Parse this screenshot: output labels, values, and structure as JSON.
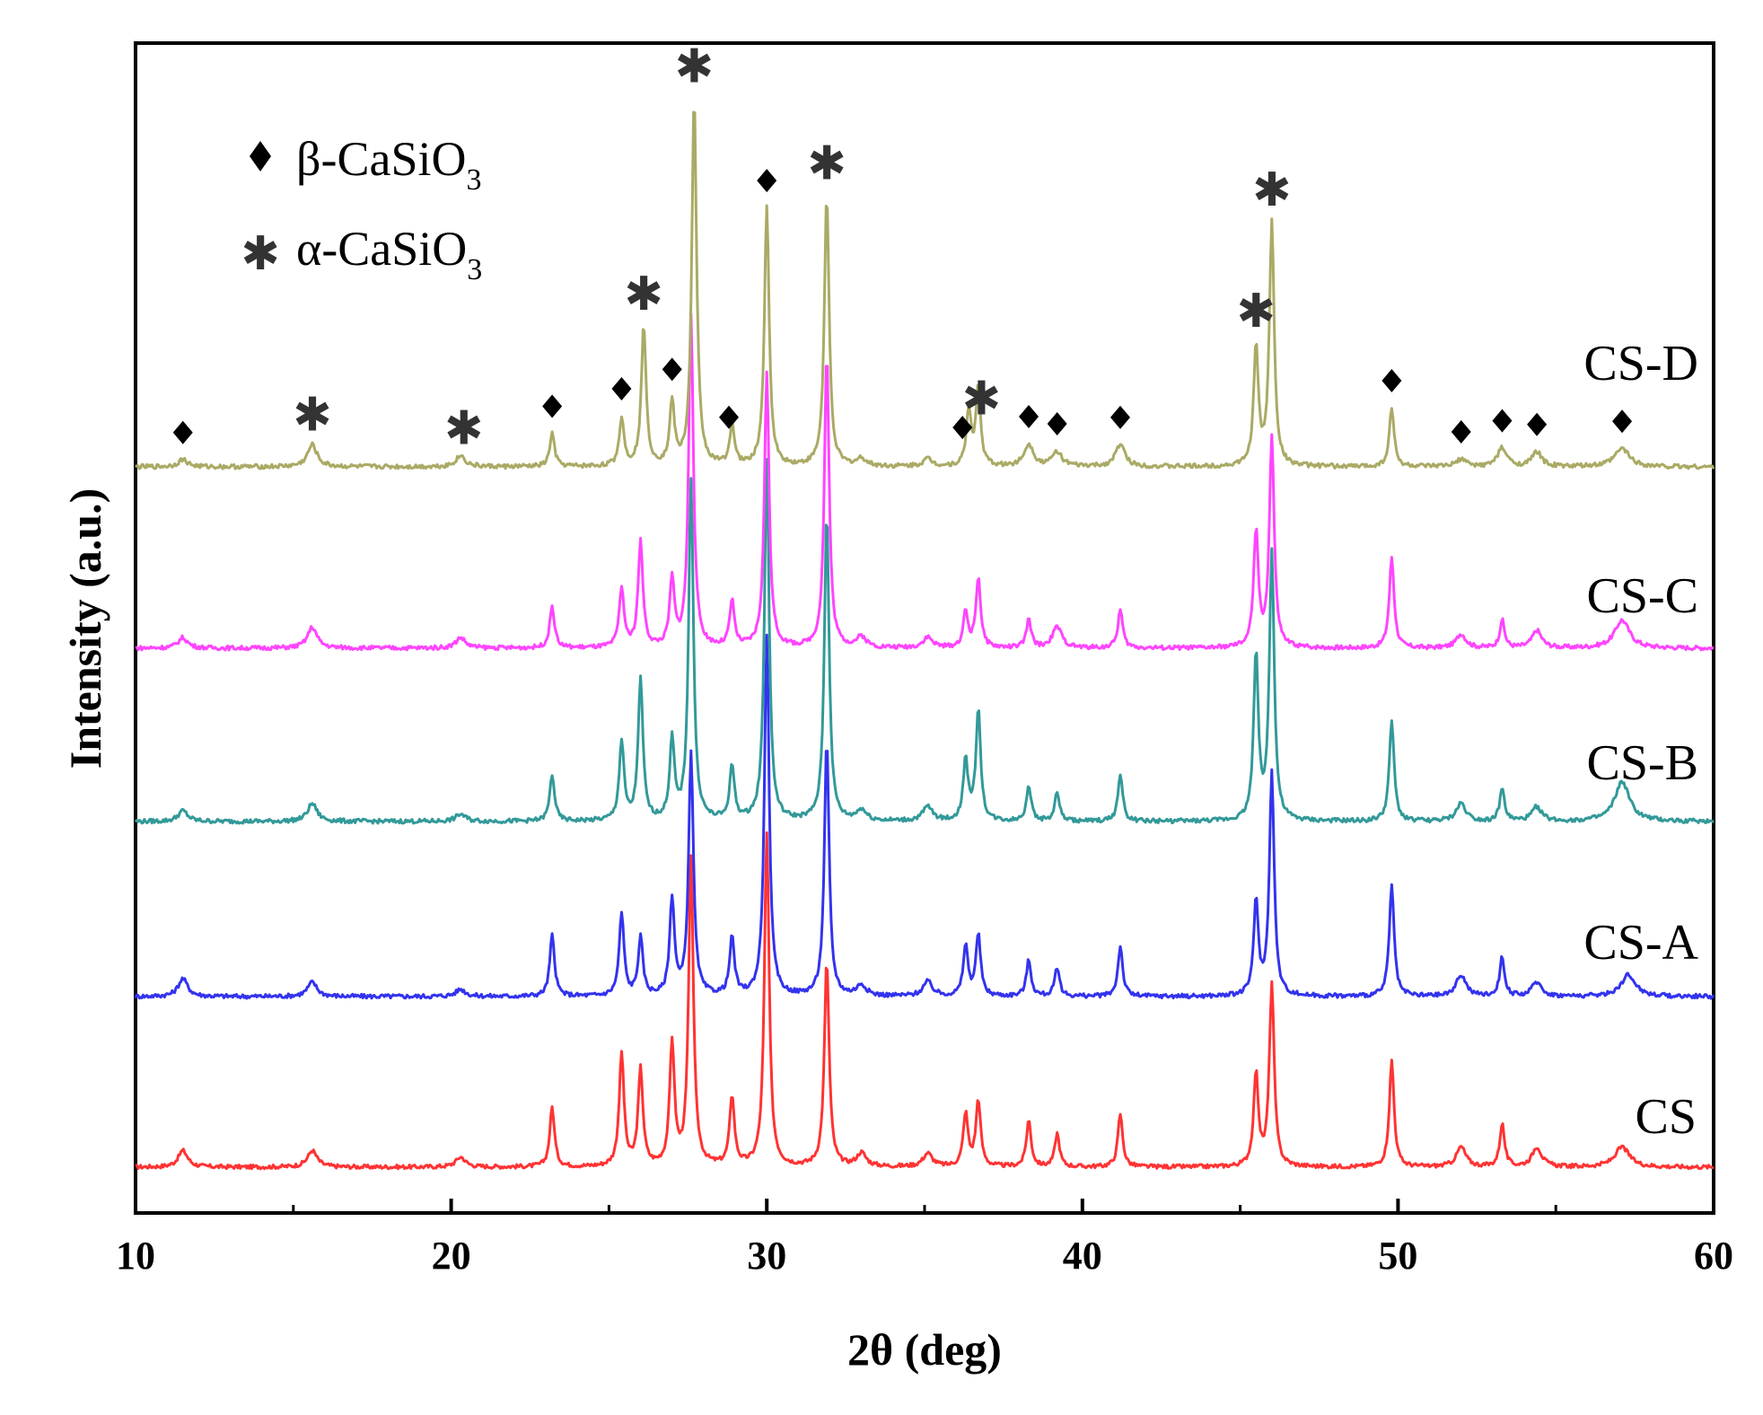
{
  "chart_data": {
    "type": "line",
    "xlabel": "2θ (deg)",
    "ylabel": "Intensity (a.u.)",
    "xlim": [
      10,
      60
    ],
    "x_ticks": [
      "10",
      "20",
      "30",
      "40",
      "50",
      "60"
    ],
    "legend": [
      {
        "symbol": "diamond",
        "label_prefix": "β-CaSiO",
        "label_sub": "3"
      },
      {
        "symbol": "star",
        "label_prefix": "α-CaSiO",
        "label_sub": "3"
      }
    ],
    "series": [
      {
        "name": "CS",
        "color": "#ff3333",
        "peaks": [
          [
            11.5,
            0.05
          ],
          [
            15.6,
            0.05
          ],
          [
            20.3,
            0.03
          ],
          [
            23.2,
            0.18
          ],
          [
            25.4,
            0.34
          ],
          [
            26.0,
            0.29
          ],
          [
            27.0,
            0.37
          ],
          [
            27.6,
            0.92
          ],
          [
            28.9,
            0.21
          ],
          [
            30.0,
            1.0
          ],
          [
            31.9,
            0.62
          ],
          [
            33.0,
            0.04
          ],
          [
            35.1,
            0.04
          ],
          [
            36.3,
            0.16
          ],
          [
            36.7,
            0.2
          ],
          [
            38.3,
            0.14
          ],
          [
            39.2,
            0.1
          ],
          [
            41.2,
            0.16
          ],
          [
            45.5,
            0.28
          ],
          [
            46.0,
            0.55
          ],
          [
            49.8,
            0.32
          ],
          [
            52.0,
            0.06
          ],
          [
            53.3,
            0.13
          ],
          [
            54.4,
            0.06
          ],
          [
            57.1,
            0.06
          ]
        ]
      },
      {
        "name": "CS-A",
        "color": "#3333ee",
        "peaks": [
          [
            11.5,
            0.05
          ],
          [
            15.6,
            0.04
          ],
          [
            20.3,
            0.02
          ],
          [
            23.2,
            0.17
          ],
          [
            25.4,
            0.23
          ],
          [
            26.0,
            0.16
          ],
          [
            27.0,
            0.27
          ],
          [
            27.6,
            0.68
          ],
          [
            28.9,
            0.16
          ],
          [
            30.0,
            1.0
          ],
          [
            31.9,
            0.71
          ],
          [
            33.0,
            0.03
          ],
          [
            35.1,
            0.04
          ],
          [
            36.3,
            0.14
          ],
          [
            36.7,
            0.17
          ],
          [
            38.3,
            0.1
          ],
          [
            39.2,
            0.08
          ],
          [
            41.2,
            0.14
          ],
          [
            45.5,
            0.26
          ],
          [
            46.0,
            0.62
          ],
          [
            49.8,
            0.31
          ],
          [
            52.0,
            0.06
          ],
          [
            53.3,
            0.11
          ],
          [
            54.4,
            0.04
          ],
          [
            57.3,
            0.06
          ]
        ]
      },
      {
        "name": "CS-B",
        "color": "#339999",
        "peaks": [
          [
            11.5,
            0.03
          ],
          [
            15.6,
            0.05
          ],
          [
            20.3,
            0.02
          ],
          [
            23.2,
            0.13
          ],
          [
            25.4,
            0.22
          ],
          [
            26.0,
            0.39
          ],
          [
            27.0,
            0.22
          ],
          [
            27.6,
            0.95
          ],
          [
            28.9,
            0.15
          ],
          [
            30.0,
            1.0
          ],
          [
            31.9,
            0.86
          ],
          [
            33.0,
            0.03
          ],
          [
            35.1,
            0.04
          ],
          [
            36.3,
            0.17
          ],
          [
            36.7,
            0.31
          ],
          [
            38.3,
            0.1
          ],
          [
            39.2,
            0.08
          ],
          [
            41.2,
            0.13
          ],
          [
            45.5,
            0.46
          ],
          [
            46.0,
            0.75
          ],
          [
            49.8,
            0.28
          ],
          [
            52.0,
            0.05
          ],
          [
            53.3,
            0.09
          ],
          [
            54.4,
            0.04
          ],
          [
            57.1,
            0.11
          ]
        ]
      },
      {
        "name": "CS-C",
        "color": "#ff44ff",
        "peaks": [
          [
            11.5,
            0.03
          ],
          [
            15.6,
            0.06
          ],
          [
            20.3,
            0.03
          ],
          [
            23.2,
            0.12
          ],
          [
            25.4,
            0.17
          ],
          [
            26.0,
            0.3
          ],
          [
            27.0,
            0.19
          ],
          [
            27.6,
            0.95
          ],
          [
            28.9,
            0.13
          ],
          [
            30.0,
            0.78
          ],
          [
            31.9,
            0.84
          ],
          [
            33.0,
            0.03
          ],
          [
            35.1,
            0.03
          ],
          [
            36.3,
            0.1
          ],
          [
            36.7,
            0.2
          ],
          [
            38.3,
            0.08
          ],
          [
            39.2,
            0.06
          ],
          [
            41.2,
            0.11
          ],
          [
            45.5,
            0.33
          ],
          [
            46.0,
            0.6
          ],
          [
            49.8,
            0.26
          ],
          [
            52.0,
            0.04
          ],
          [
            53.3,
            0.08
          ],
          [
            54.4,
            0.05
          ],
          [
            57.1,
            0.08
          ]
        ]
      },
      {
        "name": "CS-D",
        "color": "#aaaa66",
        "peaks": [
          [
            11.5,
            0.02
          ],
          [
            15.6,
            0.06
          ],
          [
            20.3,
            0.03
          ],
          [
            23.2,
            0.09
          ],
          [
            25.4,
            0.13
          ],
          [
            26.1,
            0.38
          ],
          [
            27.0,
            0.17
          ],
          [
            27.7,
            1.0
          ],
          [
            28.9,
            0.11
          ],
          [
            30.0,
            0.7
          ],
          [
            31.9,
            0.74
          ],
          [
            33.0,
            0.02
          ],
          [
            35.1,
            0.02
          ],
          [
            36.4,
            0.15
          ],
          [
            36.7,
            0.21
          ],
          [
            38.3,
            0.06
          ],
          [
            39.2,
            0.04
          ],
          [
            41.2,
            0.06
          ],
          [
            45.5,
            0.32
          ],
          [
            46.0,
            0.66
          ],
          [
            49.8,
            0.16
          ],
          [
            52.0,
            0.02
          ],
          [
            53.3,
            0.05
          ],
          [
            54.4,
            0.04
          ],
          [
            57.1,
            0.05
          ]
        ]
      }
    ],
    "annotations_cs_d": [
      {
        "x": 11.5,
        "symbol": "diamond"
      },
      {
        "x": 15.6,
        "symbol": "star"
      },
      {
        "x": 20.4,
        "symbol": "star"
      },
      {
        "x": 23.2,
        "symbol": "diamond"
      },
      {
        "x": 25.4,
        "symbol": "diamond"
      },
      {
        "x": 26.1,
        "symbol": "star"
      },
      {
        "x": 27.0,
        "symbol": "diamond"
      },
      {
        "x": 27.7,
        "symbol": "star"
      },
      {
        "x": 28.8,
        "symbol": "diamond"
      },
      {
        "x": 30.0,
        "symbol": "diamond"
      },
      {
        "x": 31.9,
        "symbol": "star"
      },
      {
        "x": 36.2,
        "symbol": "diamond"
      },
      {
        "x": 36.8,
        "symbol": "star"
      },
      {
        "x": 38.3,
        "symbol": "diamond"
      },
      {
        "x": 39.2,
        "symbol": "diamond"
      },
      {
        "x": 41.2,
        "symbol": "diamond"
      },
      {
        "x": 45.5,
        "symbol": "star"
      },
      {
        "x": 46.0,
        "symbol": "star"
      },
      {
        "x": 49.8,
        "symbol": "diamond"
      },
      {
        "x": 52.0,
        "symbol": "diamond"
      },
      {
        "x": 53.3,
        "symbol": "diamond"
      },
      {
        "x": 54.4,
        "symbol": "diamond"
      },
      {
        "x": 57.1,
        "symbol": "diamond"
      }
    ]
  }
}
